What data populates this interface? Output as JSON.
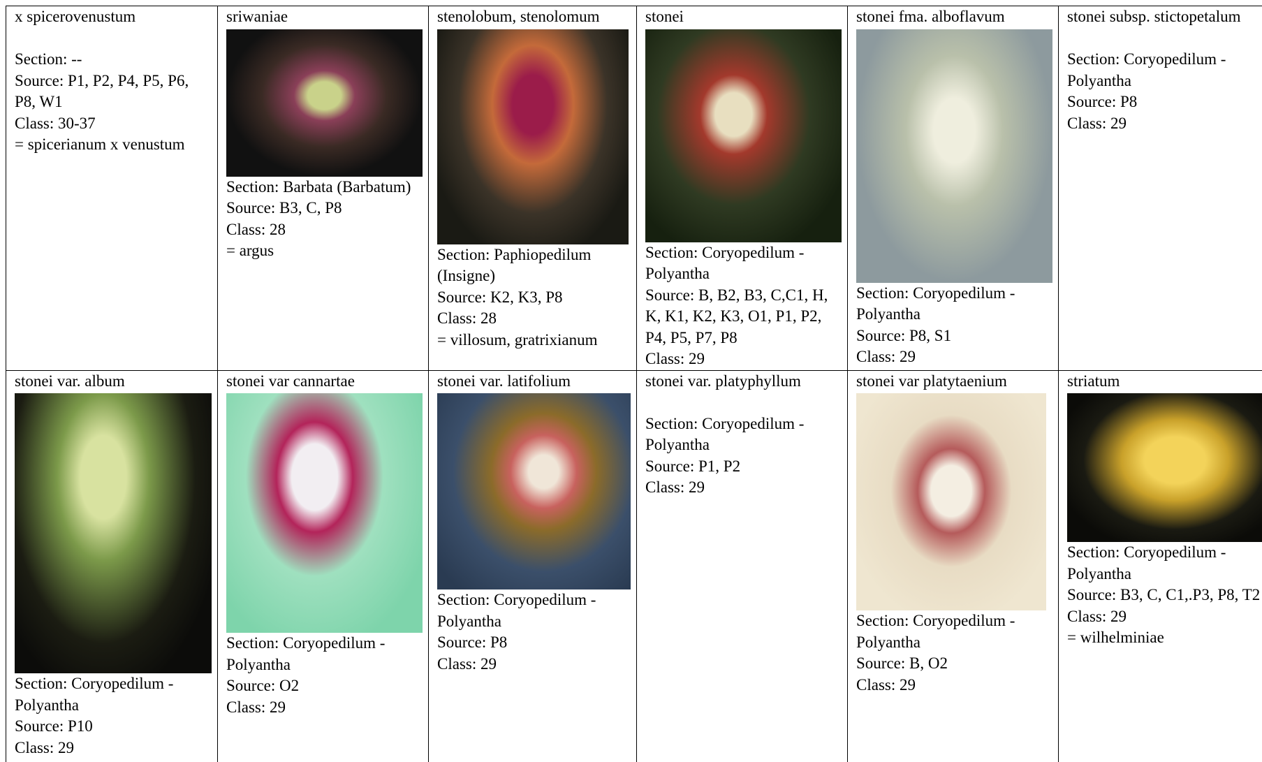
{
  "rows": [
    [
      {
        "name": "x spicerovenustum",
        "lines": [
          "Section: --",
          "Source: P1, P2, P4, P5, P6, P8, W1",
          "Class: 30-37",
          "= spicerianum x venustum"
        ]
      },
      {
        "name": "sriwaniae",
        "lines": [
          "Section: Barbata (Barbatum)",
          "Source: B3, C, P8",
          "Class: 28",
          "= argus"
        ]
      },
      {
        "name": "stenolobum, stenolomum",
        "lines": [
          "Section: Paphiopedilum (Insigne)",
          "Source: K2, K3, P8",
          "Class: 28",
          "= villosum, gratrixianum"
        ]
      },
      {
        "name": "stonei",
        "lines": [
          "Section: Coryopedilum - Polyantha",
          "Source: B, B2, B3, C,C1, H, K, K1, K2, K3, O1, P1, P2, P4, P5, P7, P8",
          "Class: 29"
        ]
      },
      {
        "name": "stonei fma. alboflavum",
        "lines": [
          "Section: Coryopedilum - Polyantha",
          "Source: P8, S1",
          "Class: 29"
        ]
      },
      {
        "name": "stonei subsp. stictopetalum",
        "lines": [
          "Section: Coryopedilum - Polyantha",
          "Source: P8",
          "Class: 29"
        ]
      }
    ],
    [
      {
        "name": "stonei var. album",
        "lines": [
          "Section: Coryopedilum - Polyantha",
          "Source: P10",
          "Class: 29"
        ]
      },
      {
        "name": "stonei var cannartae",
        "lines": [
          "Section: Coryopedilum - Polyantha",
          "Source: O2",
          "Class: 29"
        ]
      },
      {
        "name": "stonei var. latifolium",
        "lines": [
          "Section: Coryopedilum - Polyantha",
          "Source: P8",
          "Class: 29"
        ]
      },
      {
        "name": "stonei var. platyphyllum",
        "lines": [
          "Section: Coryopedilum - Polyantha",
          "Source: P1, P2",
          "Class: 29"
        ]
      },
      {
        "name": "stonei var platytaenium",
        "lines": [
          "Section: Coryopedilum - Polyantha",
          "Source: B, O2",
          "Class: 29"
        ]
      },
      {
        "name": "striatum",
        "lines": [
          "Section: Coryopedilum - Polyantha",
          "Source: B3, C, C1,.P3, P8, T2",
          "Class: 29",
          "= wilhelminiae"
        ]
      }
    ]
  ]
}
